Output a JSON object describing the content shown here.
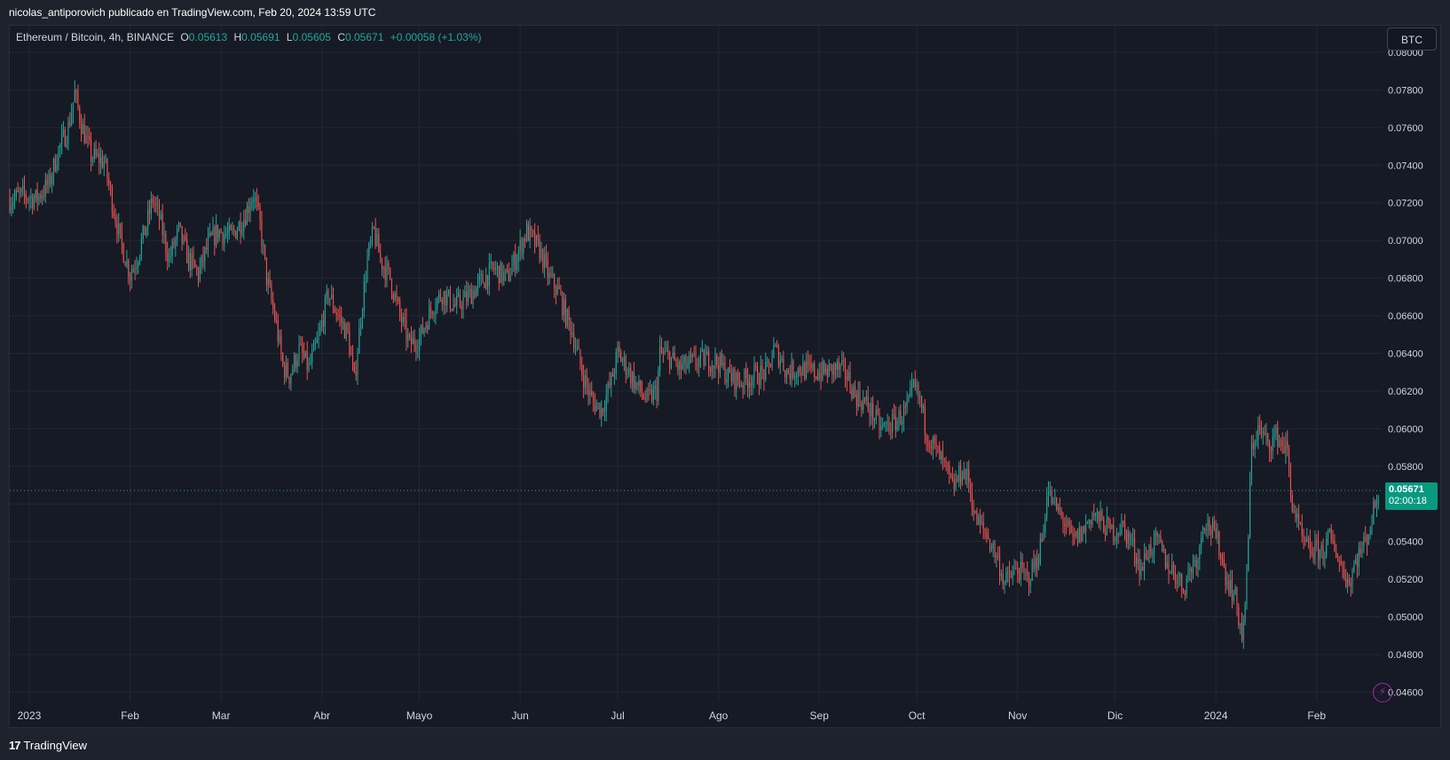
{
  "header": {
    "publisher_line": "nicolas_antiporovich publicado en TradingView.com, Feb 20, 2024 13:59 UTC"
  },
  "legend": {
    "symbol": "Ethereum / Bitcoin, 4h, BINANCE",
    "o_key": "O",
    "o_val": "0.05613",
    "h_key": "H",
    "h_val": "0.05691",
    "l_key": "L",
    "l_val": "0.05605",
    "c_key": "C",
    "c_val": "0.05671",
    "change": "+0.00058 (+1.03%)"
  },
  "currency_button": "BTC",
  "price_label": {
    "price": "0.05671",
    "countdown": "02:00:18"
  },
  "footer": {
    "logo_glyph": "17",
    "brand": "TradingView"
  },
  "icons": {
    "alert": "alert-lightning-icon",
    "logo": "tradingview-logo-icon"
  },
  "colors": {
    "up": "#26a69a",
    "down": "#ef5350",
    "background": "#161a25",
    "grid": "#232733",
    "label_bg": "#089981"
  },
  "chart_data": {
    "type": "candlestick",
    "title": "Ethereum / Bitcoin, 4h, BINANCE",
    "xlabel": "",
    "ylabel": "",
    "ylim": [
      0.0455,
      0.08
    ],
    "y_ticks": [
      "0.08000",
      "0.07800",
      "0.07600",
      "0.07400",
      "0.07200",
      "0.07000",
      "0.06800",
      "0.06600",
      "0.06400",
      "0.06200",
      "0.06000",
      "0.05800",
      "0.05600",
      "0.05400",
      "0.05200",
      "0.05000",
      "0.04800",
      "0.04600"
    ],
    "x_ticks": [
      {
        "date": "2023-01-01",
        "label": "2023"
      },
      {
        "date": "2023-02-01",
        "label": "Feb"
      },
      {
        "date": "2023-03-01",
        "label": "Mar"
      },
      {
        "date": "2023-04-01",
        "label": "Abr"
      },
      {
        "date": "2023-05-01",
        "label": "Mayo"
      },
      {
        "date": "2023-06-01",
        "label": "Jun"
      },
      {
        "date": "2023-07-01",
        "label": "Jul"
      },
      {
        "date": "2023-08-01",
        "label": "Ago"
      },
      {
        "date": "2023-09-01",
        "label": "Sep"
      },
      {
        "date": "2023-10-01",
        "label": "Oct"
      },
      {
        "date": "2023-11-01",
        "label": "Nov"
      },
      {
        "date": "2023-12-01",
        "label": "Dic"
      },
      {
        "date": "2024-01-01",
        "label": "2024"
      },
      {
        "date": "2024-02-01",
        "label": "Feb"
      }
    ],
    "x_range": [
      "2022-12-26",
      "2024-02-21"
    ],
    "last_price": 0.05671,
    "grid": true,
    "path": [
      [
        "2022-12-26",
        0.0722
      ],
      [
        "2022-12-30",
        0.0724
      ],
      [
        "2023-01-03",
        0.0722
      ],
      [
        "2023-01-07",
        0.073
      ],
      [
        "2023-01-10",
        0.0748
      ],
      [
        "2023-01-13",
        0.076
      ],
      [
        "2023-01-15",
        0.0778
      ],
      [
        "2023-01-17",
        0.0762
      ],
      [
        "2023-01-20",
        0.0745
      ],
      [
        "2023-01-24",
        0.0742
      ],
      [
        "2023-01-26",
        0.0725
      ],
      [
        "2023-01-29",
        0.07
      ],
      [
        "2023-02-01",
        0.0682
      ],
      [
        "2023-02-03",
        0.069
      ],
      [
        "2023-02-06",
        0.0708
      ],
      [
        "2023-02-08",
        0.0722
      ],
      [
        "2023-02-10",
        0.0712
      ],
      [
        "2023-02-13",
        0.069
      ],
      [
        "2023-02-16",
        0.0705
      ],
      [
        "2023-02-19",
        0.069
      ],
      [
        "2023-02-22",
        0.0682
      ],
      [
        "2023-02-25",
        0.0698
      ],
      [
        "2023-02-28",
        0.0705
      ],
      [
        "2023-03-04",
        0.0702
      ],
      [
        "2023-03-08",
        0.0712
      ],
      [
        "2023-03-11",
        0.0725
      ],
      [
        "2023-03-13",
        0.0708
      ],
      [
        "2023-03-15",
        0.068
      ],
      [
        "2023-03-18",
        0.0655
      ],
      [
        "2023-03-20",
        0.0633
      ],
      [
        "2023-03-22",
        0.0628
      ],
      [
        "2023-03-25",
        0.0642
      ],
      [
        "2023-03-28",
        0.0632
      ],
      [
        "2023-03-31",
        0.0648
      ],
      [
        "2023-04-03",
        0.0672
      ],
      [
        "2023-04-06",
        0.066
      ],
      [
        "2023-04-09",
        0.065
      ],
      [
        "2023-04-11",
        0.0625
      ],
      [
        "2023-04-13",
        0.066
      ],
      [
        "2023-04-15",
        0.069
      ],
      [
        "2023-04-17",
        0.0705
      ],
      [
        "2023-04-19",
        0.069
      ],
      [
        "2023-04-22",
        0.068
      ],
      [
        "2023-04-25",
        0.066
      ],
      [
        "2023-04-28",
        0.0645
      ],
      [
        "2023-05-01",
        0.0648
      ],
      [
        "2023-05-05",
        0.0665
      ],
      [
        "2023-05-08",
        0.0672
      ],
      [
        "2023-05-12",
        0.0665
      ],
      [
        "2023-05-16",
        0.067
      ],
      [
        "2023-05-20",
        0.0678
      ],
      [
        "2023-05-24",
        0.0685
      ],
      [
        "2023-05-28",
        0.068
      ],
      [
        "2023-05-31",
        0.0692
      ],
      [
        "2023-06-03",
        0.0705
      ],
      [
        "2023-06-05",
        0.07
      ],
      [
        "2023-06-07",
        0.0695
      ],
      [
        "2023-06-10",
        0.068
      ],
      [
        "2023-06-13",
        0.0672
      ],
      [
        "2023-06-15",
        0.066
      ],
      [
        "2023-06-17",
        0.0652
      ],
      [
        "2023-06-20",
        0.063
      ],
      [
        "2023-06-23",
        0.0615
      ],
      [
        "2023-06-26",
        0.061
      ],
      [
        "2023-06-29",
        0.0625
      ],
      [
        "2023-07-01",
        0.064
      ],
      [
        "2023-07-04",
        0.0632
      ],
      [
        "2023-07-07",
        0.0622
      ],
      [
        "2023-07-10",
        0.0615
      ],
      [
        "2023-07-13",
        0.062
      ],
      [
        "2023-07-14",
        0.064
      ],
      [
        "2023-07-17",
        0.0638
      ],
      [
        "2023-07-20",
        0.0632
      ],
      [
        "2023-07-24",
        0.0635
      ],
      [
        "2023-07-28",
        0.0637
      ],
      [
        "2023-08-01",
        0.0635
      ],
      [
        "2023-08-04",
        0.0628
      ],
      [
        "2023-08-08",
        0.0625
      ],
      [
        "2023-08-12",
        0.0628
      ],
      [
        "2023-08-16",
        0.063
      ],
      [
        "2023-08-18",
        0.0642
      ],
      [
        "2023-08-20",
        0.0638
      ],
      [
        "2023-08-22",
        0.063
      ],
      [
        "2023-08-26",
        0.0632
      ],
      [
        "2023-08-30",
        0.063
      ],
      [
        "2023-09-03",
        0.063
      ],
      [
        "2023-09-06",
        0.0632
      ],
      [
        "2023-09-09",
        0.063
      ],
      [
        "2023-09-12",
        0.0618
      ],
      [
        "2023-09-16",
        0.0612
      ],
      [
        "2023-09-20",
        0.06
      ],
      [
        "2023-09-24",
        0.0603
      ],
      [
        "2023-09-28",
        0.061
      ],
      [
        "2023-09-30",
        0.0622
      ],
      [
        "2023-10-02",
        0.0615
      ],
      [
        "2023-10-04",
        0.0598
      ],
      [
        "2023-10-07",
        0.0588
      ],
      [
        "2023-10-10",
        0.0578
      ],
      [
        "2023-10-12",
        0.0568
      ],
      [
        "2023-10-15",
        0.0578
      ],
      [
        "2023-10-17",
        0.0572
      ],
      [
        "2023-10-19",
        0.0552
      ],
      [
        "2023-10-22",
        0.0545
      ],
      [
        "2023-10-24",
        0.0538
      ],
      [
        "2023-10-26",
        0.053
      ],
      [
        "2023-10-28",
        0.0518
      ],
      [
        "2023-11-01",
        0.0525
      ],
      [
        "2023-11-04",
        0.052
      ],
      [
        "2023-11-07",
        0.053
      ],
      [
        "2023-11-09",
        0.0545
      ],
      [
        "2023-11-10",
        0.0568
      ],
      [
        "2023-11-12",
        0.056
      ],
      [
        "2023-11-15",
        0.0552
      ],
      [
        "2023-11-18",
        0.054
      ],
      [
        "2023-11-21",
        0.0545
      ],
      [
        "2023-11-24",
        0.0555
      ],
      [
        "2023-11-27",
        0.055
      ],
      [
        "2023-11-30",
        0.0545
      ],
      [
        "2023-12-03",
        0.0548
      ],
      [
        "2023-12-06",
        0.054
      ],
      [
        "2023-12-09",
        0.0525
      ],
      [
        "2023-12-11",
        0.0535
      ],
      [
        "2023-12-14",
        0.054
      ],
      [
        "2023-12-17",
        0.0528
      ],
      [
        "2023-12-20",
        0.0522
      ],
      [
        "2023-12-22",
        0.0515
      ],
      [
        "2023-12-24",
        0.0525
      ],
      [
        "2023-12-27",
        0.0535
      ],
      [
        "2023-12-28",
        0.0552
      ],
      [
        "2023-12-30",
        0.0548
      ],
      [
        "2024-01-02",
        0.0538
      ],
      [
        "2024-01-04",
        0.0522
      ],
      [
        "2024-01-07",
        0.051
      ],
      [
        "2024-01-09",
        0.049
      ],
      [
        "2024-01-10",
        0.0502
      ],
      [
        "2024-01-11",
        0.0545
      ],
      [
        "2024-01-12",
        0.059
      ],
      [
        "2024-01-14",
        0.06
      ],
      [
        "2024-01-17",
        0.0592
      ],
      [
        "2024-01-20",
        0.0596
      ],
      [
        "2024-01-23",
        0.0588
      ],
      [
        "2024-01-24",
        0.0565
      ],
      [
        "2024-01-26",
        0.055
      ],
      [
        "2024-01-28",
        0.0538
      ],
      [
        "2024-01-31",
        0.0535
      ],
      [
        "2024-02-03",
        0.0535
      ],
      [
        "2024-02-05",
        0.0542
      ],
      [
        "2024-02-07",
        0.0535
      ],
      [
        "2024-02-09",
        0.0525
      ],
      [
        "2024-02-11",
        0.0518
      ],
      [
        "2024-02-13",
        0.053
      ],
      [
        "2024-02-16",
        0.054
      ],
      [
        "2024-02-18",
        0.0552
      ],
      [
        "2024-02-20",
        0.0567
      ]
    ]
  }
}
